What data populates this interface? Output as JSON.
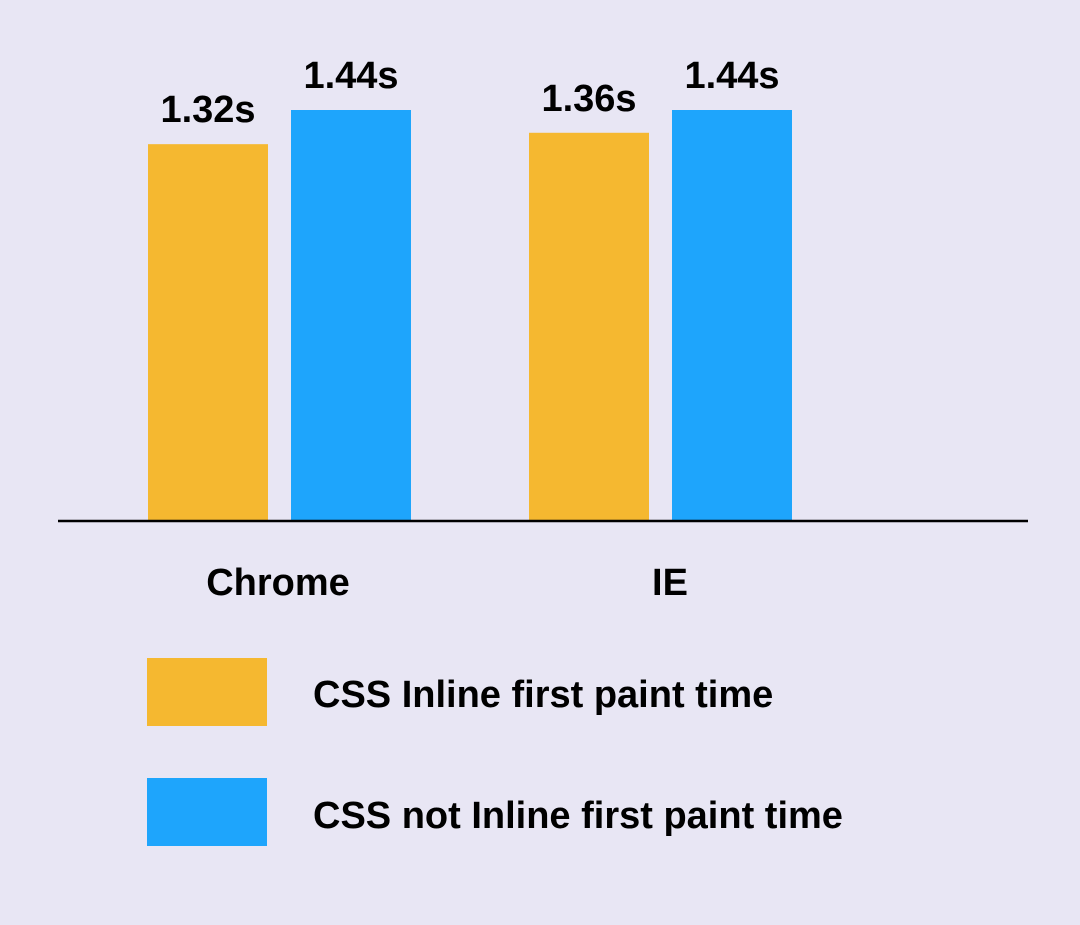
{
  "chart_data": {
    "type": "bar",
    "categories": [
      "Chrome",
      "IE"
    ],
    "series": [
      {
        "name": "CSS Inline first paint time",
        "values": [
          1.32,
          1.36
        ],
        "labels": [
          "1.32s",
          "1.36s"
        ],
        "color": "#f5b830"
      },
      {
        "name": "CSS not Inline first paint time",
        "values": [
          1.44,
          1.44
        ],
        "labels": [
          "1.44s",
          "1.44s"
        ],
        "color": "#1ea5fc"
      }
    ],
    "title": "",
    "xlabel": "",
    "ylabel": "",
    "ylim": [
      0,
      1.44
    ],
    "grid": false,
    "legend_position": "bottom"
  },
  "colors": {
    "background": "#e8e6f4",
    "axis": "#000000"
  }
}
